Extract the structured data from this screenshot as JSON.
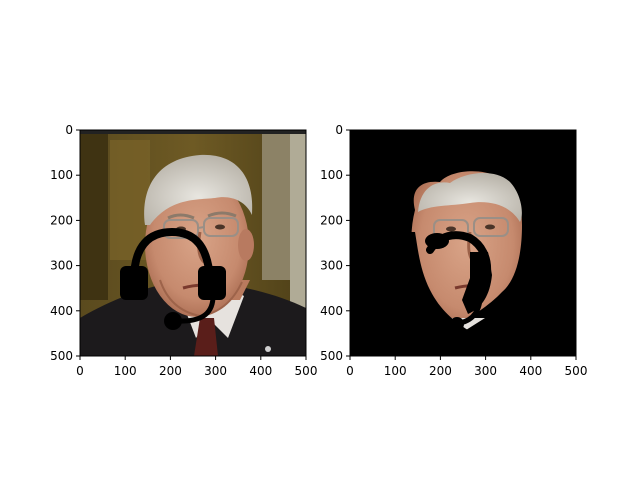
{
  "figure": {
    "background": "#ffffff"
  },
  "chart_data": [
    {
      "type": "image",
      "panel": "left",
      "content": "photo",
      "overlay_icon": "headset-icon",
      "xlim": [
        0,
        500
      ],
      "ylim": [
        500,
        0
      ],
      "xticks": [
        0,
        100,
        200,
        300,
        400,
        500
      ],
      "yticks": [
        0,
        100,
        200,
        300,
        400,
        500
      ],
      "xtick_labels": [
        "0",
        "100",
        "200",
        "300",
        "400",
        "500"
      ],
      "ytick_labels": [
        "0",
        "100",
        "200",
        "300",
        "400",
        "500"
      ],
      "grid": false
    },
    {
      "type": "image",
      "panel": "right",
      "content": "masked-photo",
      "overlay_icon": "headset-icon",
      "background": "#000000",
      "xlim": [
        0,
        500
      ],
      "ylim": [
        500,
        0
      ],
      "xticks": [
        0,
        100,
        200,
        300,
        400,
        500
      ],
      "yticks": [
        0,
        100,
        200,
        300,
        400,
        500
      ],
      "xtick_labels": [
        "0",
        "100",
        "200",
        "300",
        "400",
        "500"
      ],
      "ytick_labels": [
        "0",
        "100",
        "200",
        "300",
        "400",
        "500"
      ],
      "grid": false
    }
  ]
}
